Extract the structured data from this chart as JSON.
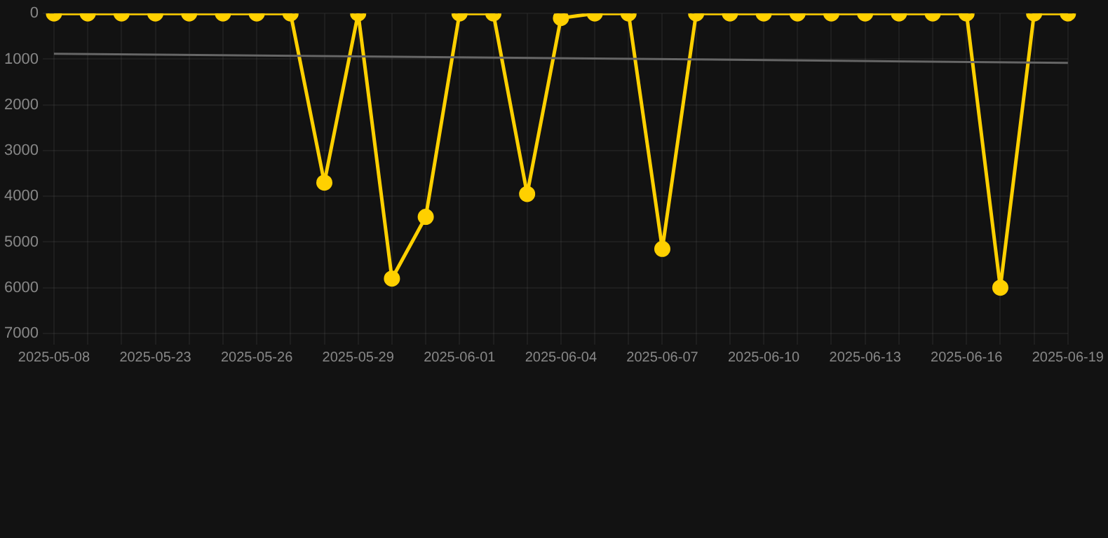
{
  "chart_data": {
    "type": "line",
    "categories": [
      "2025-05-08",
      null,
      null,
      "2025-05-23",
      null,
      null,
      "2025-05-26",
      null,
      null,
      "2025-05-29",
      null,
      null,
      "2025-06-01",
      null,
      null,
      "2025-06-04",
      null,
      null,
      "2025-06-07",
      null,
      null,
      "2025-06-10",
      null,
      null,
      "2025-06-13",
      null,
      null,
      "2025-06-16",
      null,
      null,
      "2025-06-19"
    ],
    "series": [
      {
        "color": "#ffd000",
        "marker": "circle",
        "values": [
          0,
          0,
          0,
          0,
          0,
          0,
          0,
          0,
          3700,
          0,
          5800,
          4450,
          0,
          0,
          3950,
          100,
          0,
          0,
          5150,
          0,
          0,
          0,
          0,
          0,
          0,
          0,
          0,
          0,
          6000,
          0,
          0
        ]
      },
      {
        "type": "line",
        "color": "#666666",
        "marker": "none",
        "values": [
          880,
          null,
          null,
          null,
          null,
          null,
          null,
          null,
          null,
          null,
          null,
          null,
          null,
          null,
          null,
          null,
          null,
          null,
          null,
          null,
          null,
          null,
          null,
          null,
          null,
          null,
          null,
          null,
          null,
          null,
          1080
        ]
      }
    ],
    "ylim": [
      7000,
      0
    ],
    "yticks": [
      0,
      1000,
      2000,
      3000,
      4000,
      5000,
      6000,
      7000
    ],
    "grid": true
  }
}
